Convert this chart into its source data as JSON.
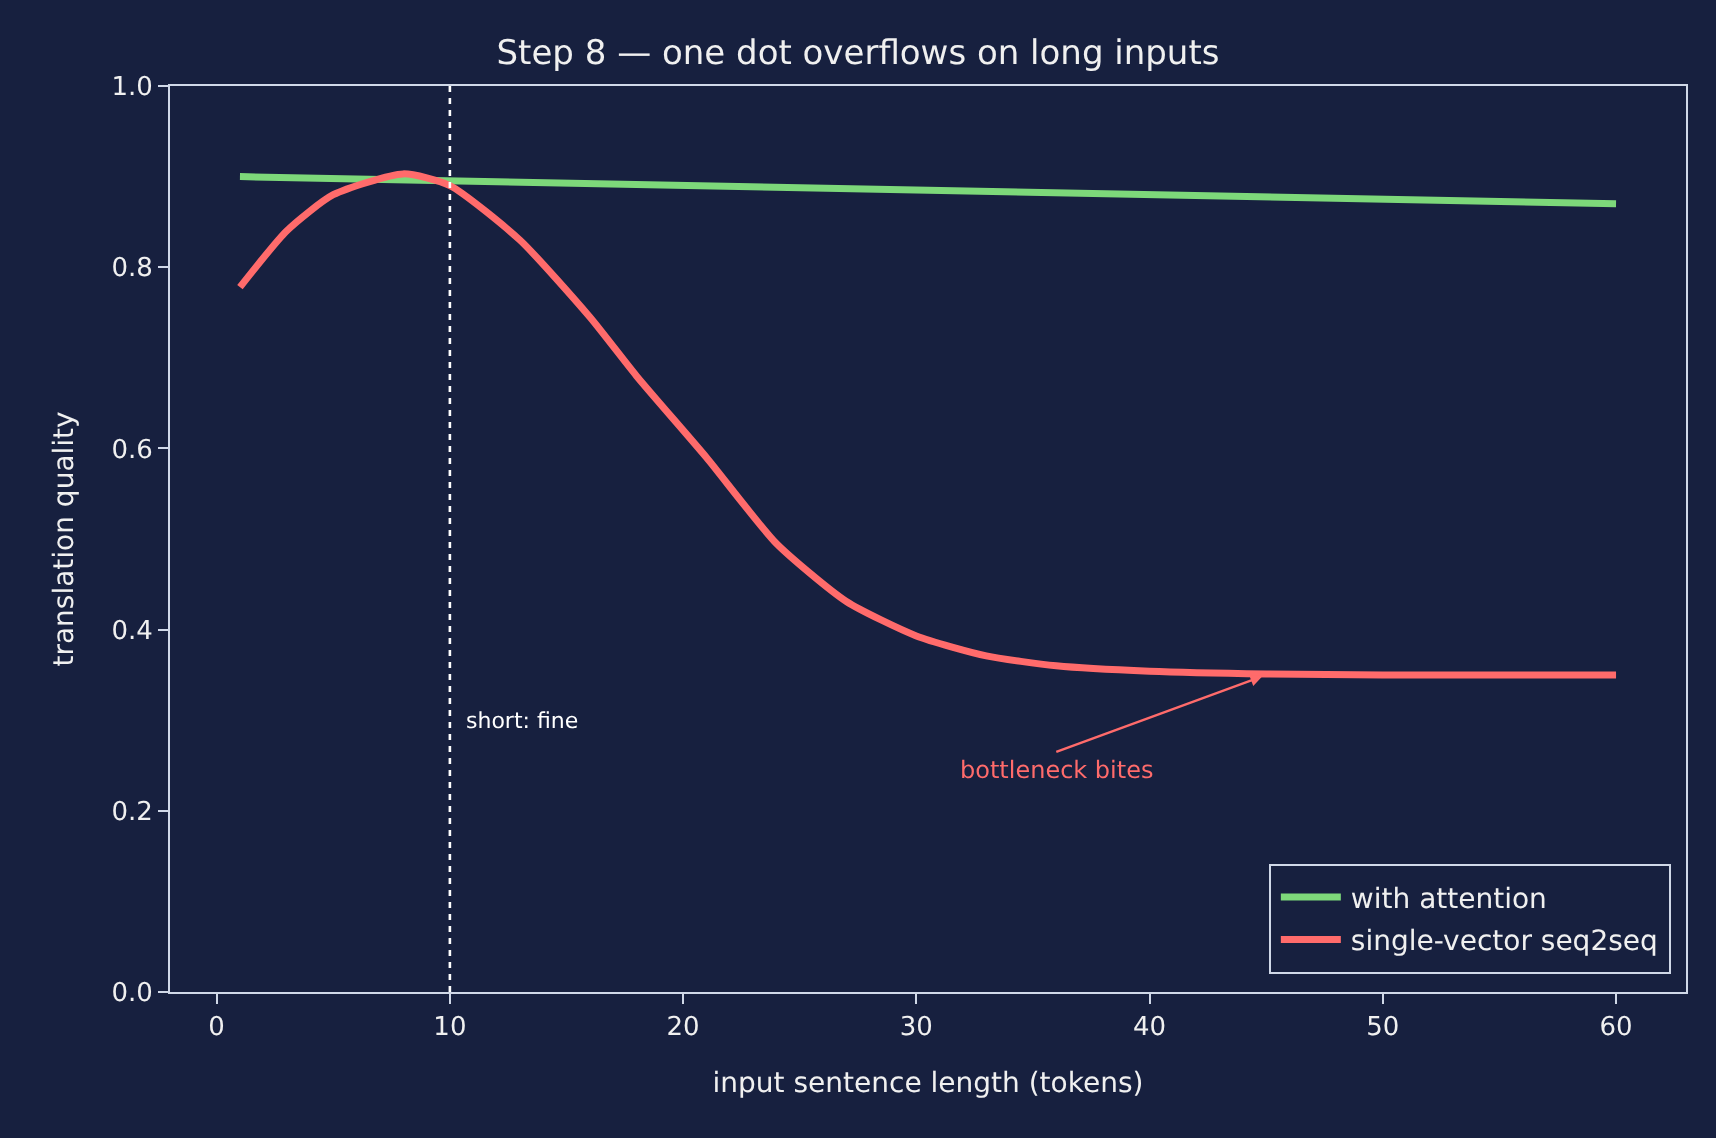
{
  "chart_data": {
    "type": "line",
    "title": "Step 8 — one dot overflows on long inputs",
    "xlabel": "input sentence length (tokens)",
    "ylabel": "translation quality",
    "series": [
      {
        "name": "with attention",
        "color": "#7dd87a",
        "x": [
          1,
          60
        ],
        "values": [
          0.9,
          0.87
        ]
      },
      {
        "name": "single-vector seq2seq",
        "color": "#ff6b6b",
        "x": [
          1,
          3,
          5,
          8,
          10,
          13,
          16,
          18,
          21,
          24,
          27,
          30,
          33,
          36,
          40,
          45,
          50,
          60
        ],
        "values": [
          0.778,
          0.84,
          0.88,
          0.903,
          0.89,
          0.83,
          0.745,
          0.68,
          0.59,
          0.495,
          0.431,
          0.393,
          0.371,
          0.36,
          0.354,
          0.351,
          0.35,
          0.35
        ]
      }
    ],
    "xlim": [
      -2,
      63
    ],
    "xticks": [
      0,
      10,
      20,
      30,
      40,
      50,
      60
    ],
    "ylim": [
      0,
      1
    ],
    "yticks": [
      {
        "value": 0,
        "label": "0.0"
      },
      0.2,
      0.4,
      0.6,
      0.8,
      {
        "value": 1,
        "label": "1.0"
      }
    ],
    "ref_lines": [
      {
        "axis": "x",
        "value": 10,
        "label": "short: fine",
        "color": "#ffffff",
        "line_style": "dotted"
      }
    ],
    "annotations": [
      {
        "text": "bottleneck bites",
        "x": 45,
        "y": 0.35
      }
    ],
    "grid": false,
    "legend": "bottom right",
    "marker": "none",
    "line_style": "solid"
  }
}
